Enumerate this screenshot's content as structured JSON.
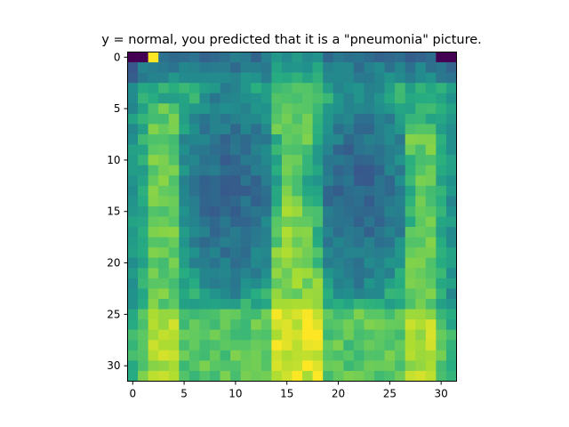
{
  "title": "y = normal, you predicted that it is a \"pneumonia\" picture.",
  "image": {
    "rows": 32,
    "cols": 32,
    "colormap": "viridis",
    "value_range": [
      0,
      1
    ],
    "x_ticks": [
      0,
      5,
      10,
      15,
      20,
      25,
      30
    ],
    "y_ticks": [
      0,
      5,
      10,
      15,
      20,
      25,
      30
    ],
    "description": "Low-resolution 32x32 chest X-ray rendered with the viridis colormap; darker lung fields on both sides of a brighter central spine, brighter lower region near the diaphragm, and a very bright pixel near the top-left at column 2, row 0."
  }
}
